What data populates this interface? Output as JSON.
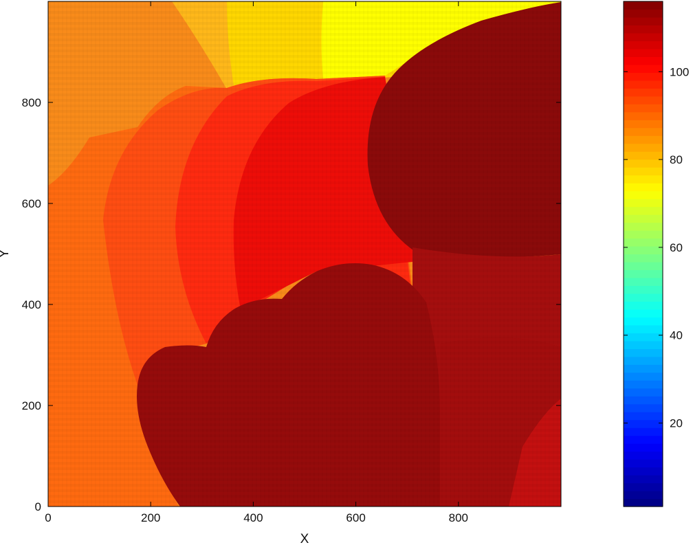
{
  "chart_data": {
    "type": "heatmap",
    "title": "",
    "xlabel": "X",
    "ylabel": "Y",
    "xlim": [
      0,
      1000
    ],
    "ylim": [
      0,
      1000
    ],
    "x_ticks": [
      0,
      200,
      400,
      600,
      800
    ],
    "y_ticks": [
      0,
      200,
      400,
      600,
      800
    ],
    "grid": false,
    "colormap": "jet",
    "colorbar": {
      "range": [
        1,
        116
      ],
      "ticks": [
        20,
        40,
        60,
        80,
        100
      ],
      "position": "right"
    },
    "regions": [
      {
        "value": 80,
        "color": "#f98b1a",
        "desc": "top-left corner band"
      },
      {
        "value": 72,
        "color": "#ffd700",
        "desc": "top center band"
      },
      {
        "value": 68,
        "color": "#ffff00",
        "desc": "top right band"
      },
      {
        "value": 86,
        "color": "#ff6a10",
        "desc": "left middle band"
      },
      {
        "value": 91,
        "color": "#ff4d12",
        "desc": "left-center ring"
      },
      {
        "value": 97,
        "color": "#ff2a10",
        "desc": "center ring"
      },
      {
        "value": 102,
        "color": "#ee0d08",
        "desc": "right-center ring"
      },
      {
        "value": 113,
        "color": "#8b0a0a",
        "desc": "top-right dark cell"
      },
      {
        "value": 112,
        "color": "#960b0b",
        "desc": "bottom-center dark cell"
      },
      {
        "value": 110,
        "color": "#a50e0e",
        "desc": "right edge cell"
      }
    ]
  }
}
